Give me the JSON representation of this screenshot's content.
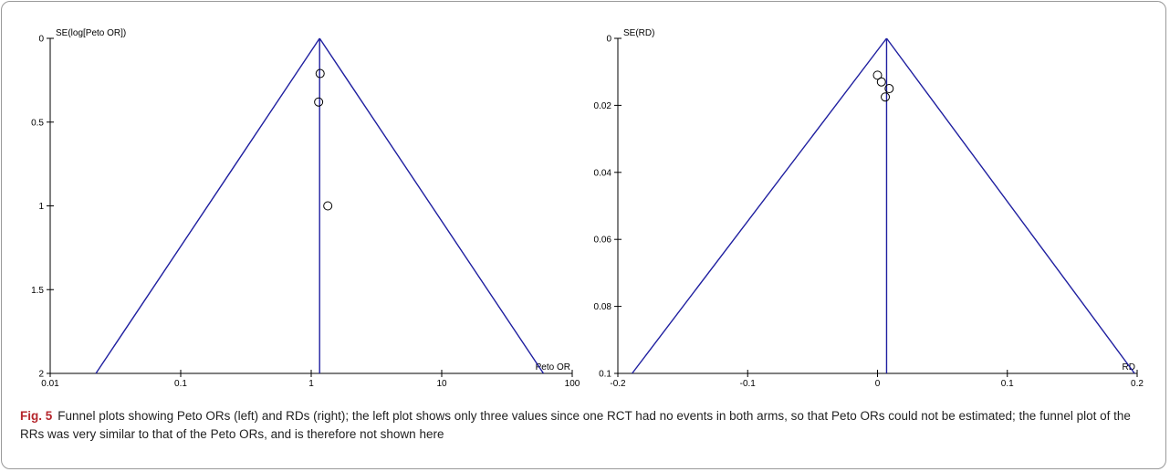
{
  "chart_data": [
    {
      "type": "scatter",
      "subtype": "funnel-plot",
      "xlabel": "Peto OR",
      "ylabel": "SE(log[Peto OR])",
      "xscale": "log",
      "xlim": [
        0.01,
        100
      ],
      "ylim": [
        0,
        2
      ],
      "y_inverted": true,
      "xticks": [
        "0.01",
        "0.1",
        "1",
        "10",
        "100"
      ],
      "yticks": [
        "0",
        "0.5",
        "1",
        "1.5",
        "2"
      ],
      "pooled_estimate": 1.16,
      "funnel_bottom": [
        0.0224,
        60.2
      ],
      "points": [
        {
          "x": 1.17,
          "y": 0.21
        },
        {
          "x": 1.14,
          "y": 0.38
        },
        {
          "x": 1.34,
          "y": 1.0
        }
      ],
      "grid": false,
      "line_color": "#1f1fa0"
    },
    {
      "type": "scatter",
      "subtype": "funnel-plot",
      "xlabel": "RD",
      "ylabel": "SE(RD)",
      "xscale": "linear",
      "xlim": [
        -0.2,
        0.2
      ],
      "ylim": [
        0,
        0.1
      ],
      "y_inverted": true,
      "xticks": [
        "-0.2",
        "-0.1",
        "0",
        "0.1",
        "0.2"
      ],
      "yticks": [
        "0",
        "0.02",
        "0.04",
        "0.06",
        "0.08",
        "0.1"
      ],
      "pooled_estimate": 0.007,
      "funnel_bottom": [
        -0.189,
        0.198
      ],
      "points": [
        {
          "x": 0.0,
          "y": 0.011
        },
        {
          "x": 0.003,
          "y": 0.013
        },
        {
          "x": 0.009,
          "y": 0.015
        },
        {
          "x": 0.006,
          "y": 0.0175
        }
      ],
      "grid": false,
      "line_color": "#1f1fa0"
    }
  ],
  "caption": {
    "label": "Fig. 5",
    "text": "Funnel plots showing Peto ORs (left) and RDs (right); the left plot shows only three values since one RCT had no events in both arms, so that Peto ORs could not be estimated; the funnel plot of the RRs was very similar to that of the Peto ORs, and is therefore not shown here"
  }
}
